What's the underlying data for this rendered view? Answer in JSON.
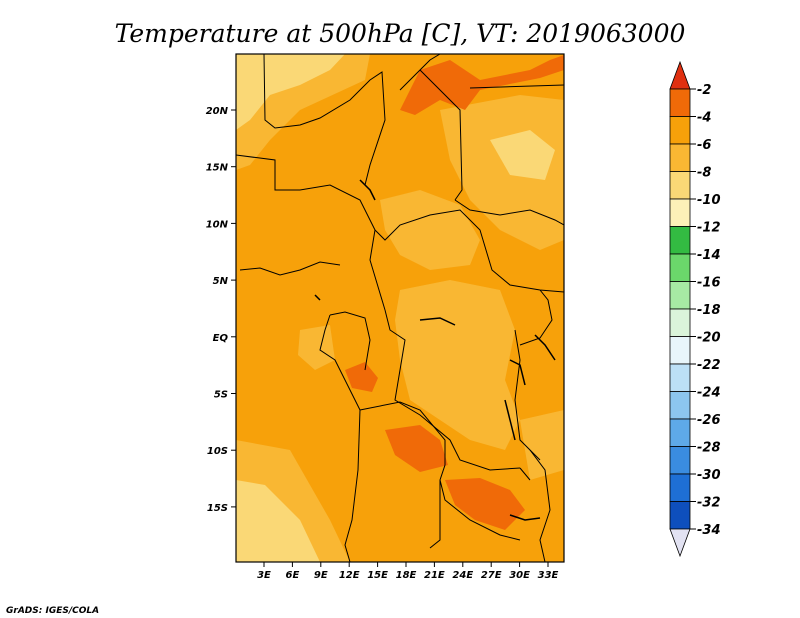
{
  "title": "Temperature at 500hPa [C], VT: 2019063000",
  "credit": "GrADS: IGES/COLA",
  "map": {
    "lat_ticks": [
      "20N",
      "15N",
      "10N",
      "5N",
      "EQ",
      "5S",
      "10S",
      "15S"
    ],
    "lon_ticks": [
      "3E",
      "6E",
      "9E",
      "12E",
      "15E",
      "18E",
      "21E",
      "24E",
      "27E",
      "30E",
      "33E"
    ],
    "field_colors": {
      "level_-4_to_-2": "#f06a08",
      "level_-6_to_-4": "#f7a10a",
      "level_-8_to_-6": "#f9b733",
      "level_-10_to_-8": "#fad876"
    }
  },
  "colorbar": {
    "labels": [
      "-2",
      "-4",
      "-6",
      "-8",
      "-10",
      "-12",
      "-14",
      "-16",
      "-18",
      "-20",
      "-22",
      "-24",
      "-26",
      "-28",
      "-30",
      "-32",
      "-34"
    ],
    "colors": [
      "#f06a08",
      "#f7a10a",
      "#f9b733",
      "#fad876",
      "#fdf1b8",
      "#33bb42",
      "#6bd76b",
      "#a7eaa4",
      "#daf5da",
      "#e8f6fb",
      "#bce0f6",
      "#8cc6ef",
      "#5ea9e8",
      "#3a8ce0",
      "#1e6fd5",
      "#0e4fbd",
      "#08106e"
    ],
    "top_triangle_color": "#e03010",
    "bottom_triangle_color": "#e2e2f2"
  }
}
